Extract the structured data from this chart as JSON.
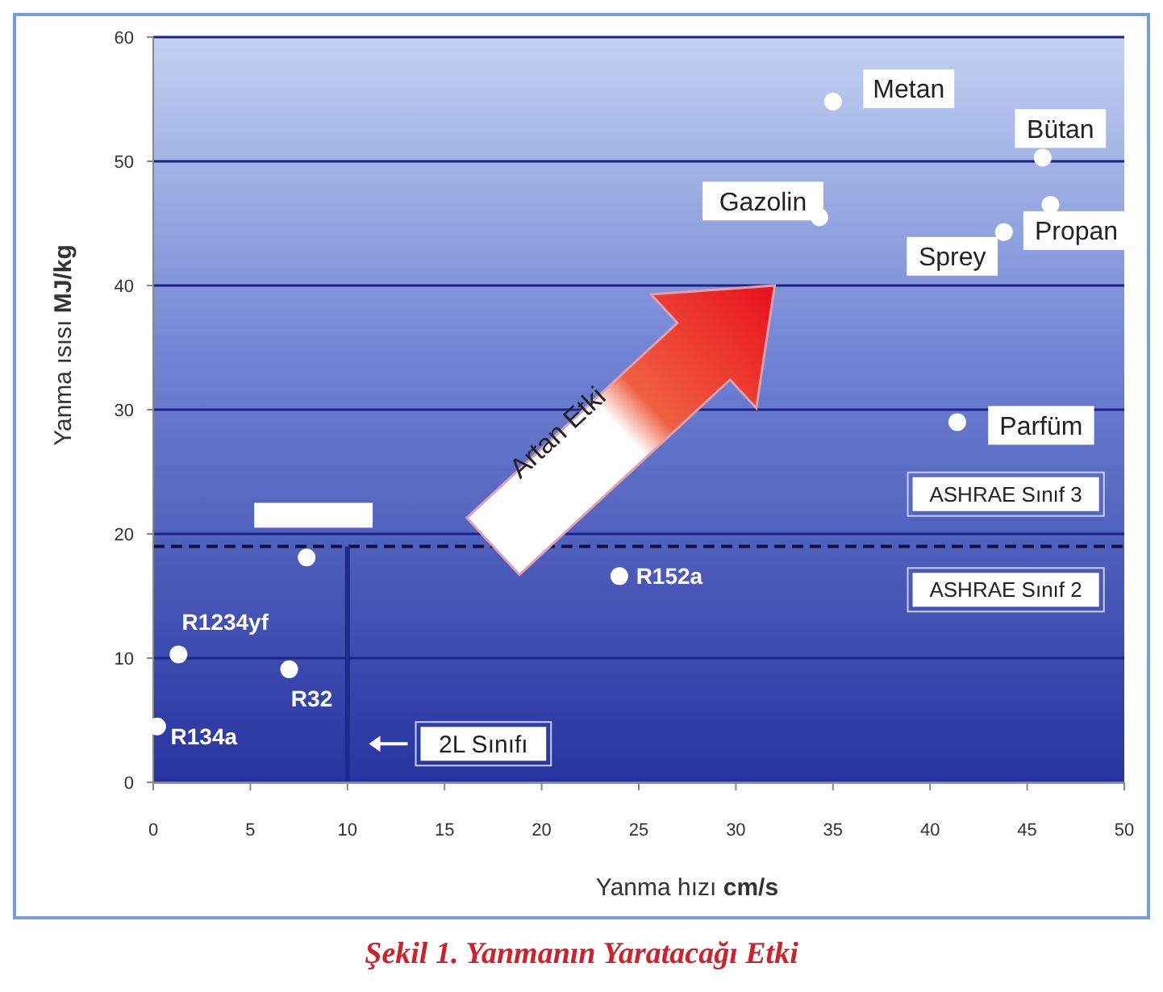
{
  "chart_data": {
    "type": "scatter",
    "title": "Şekil 1. Yanmanın Yaratacağı Etki",
    "xlabel": "Yanma hızı cm/s",
    "ylabel": "Yanma ısısı MJ/kg",
    "xlim": [
      0,
      50
    ],
    "ylim": [
      0,
      60
    ],
    "xticks": [
      0,
      5,
      10,
      15,
      20,
      25,
      30,
      35,
      40,
      45,
      50
    ],
    "yticks": [
      0,
      10,
      20,
      30,
      40,
      50,
      60
    ],
    "grid": "y",
    "marker": "circle",
    "series": [
      {
        "color": "#ffffff",
        "x": [
          35.0,
          45.8,
          46.2,
          43.8,
          34.3,
          41.4
        ],
        "values": [
          54.8,
          50.3,
          46.5,
          44.3,
          45.5,
          29.0
        ]
      },
      {
        "color": "#ffffff",
        "x": [
          24.0,
          7.9,
          1.3,
          7.0,
          0.2
        ],
        "values": [
          16.6,
          18.1,
          10.3,
          9.1,
          4.5
        ]
      }
    ],
    "ref_lines": [
      {
        "axis": "y",
        "value": 19,
        "color": "#101040",
        "line_style": "dashed"
      },
      {
        "axis": "x",
        "value": 10,
        "color": "#1e2a8a",
        "line_style": "solid"
      }
    ],
    "annotations": [
      {
        "text": "Metan",
        "x": 35.0,
        "y": 54.8
      },
      {
        "text": "Bütan",
        "x": 45.8,
        "y": 50.3
      },
      {
        "text": "Propan",
        "x": 46.2,
        "y": 46.5
      },
      {
        "text": "Sprey",
        "x": 43.8,
        "y": 44.3
      },
      {
        "text": "Gazolin",
        "x": 34.3,
        "y": 45.5
      },
      {
        "text": "Parfüm",
        "x": 41.4,
        "y": 29.0
      },
      {
        "text": "R152a",
        "x": 24.0,
        "y": 16.6
      },
      {
        "text": "R1234yf",
        "x": 1.3,
        "y": 10.3
      },
      {
        "text": "R32",
        "x": 7.0,
        "y": 9.1
      },
      {
        "text": "R134a",
        "x": 0.2,
        "y": 4.5
      },
      "ASHRAE Sınıf 3",
      "ASHRAE Sınıf 2",
      "2L Sınıfı",
      "Artan Etki"
    ]
  }
}
